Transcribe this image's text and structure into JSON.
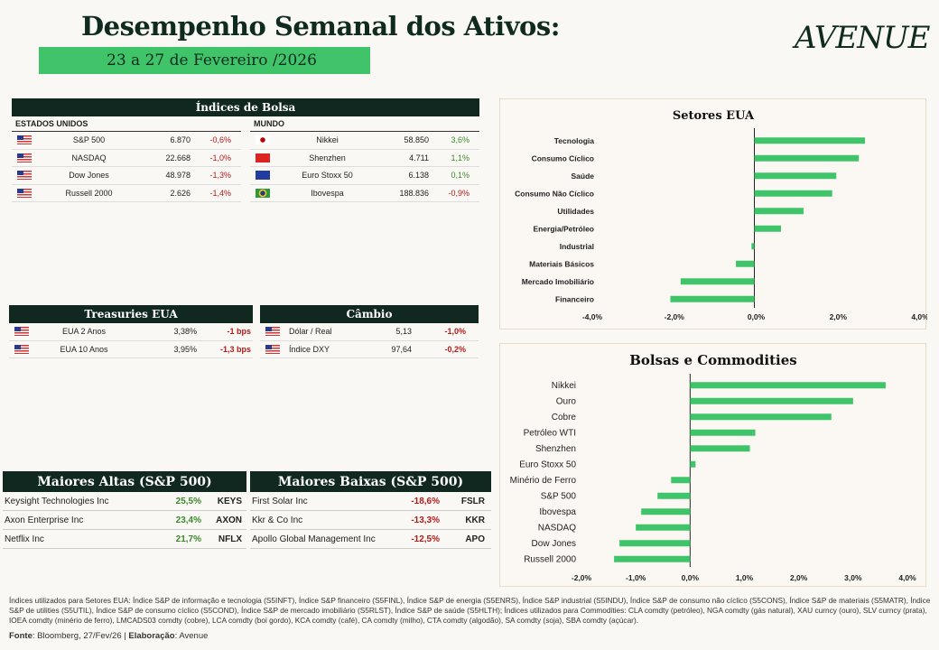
{
  "header": {
    "title": "Desempenho Semanal dos Ativos:",
    "date": "23 a 27 de Fevereiro /2026",
    "logo": "AVENUE"
  },
  "indices": {
    "title": "Índices de Bolsa",
    "us_label": "ESTADOS UNIDOS",
    "world_label": "MUNDO",
    "us": [
      {
        "flag": "us",
        "name": "S&P 500",
        "value": "6.870",
        "change": "-0,6%",
        "dir": "neg"
      },
      {
        "flag": "us",
        "name": "NASDAQ",
        "value": "22.668",
        "change": "-1,0%",
        "dir": "neg"
      },
      {
        "flag": "us",
        "name": "Dow Jones",
        "value": "48.978",
        "change": "-1,3%",
        "dir": "neg"
      },
      {
        "flag": "us",
        "name": "Russell 2000",
        "value": "2.626",
        "change": "-1,4%",
        "dir": "neg"
      }
    ],
    "world": [
      {
        "flag": "jp",
        "name": "Nikkei",
        "value": "58.850",
        "change": "3,6%",
        "dir": "pos"
      },
      {
        "flag": "cn",
        "name": "Shenzhen",
        "value": "4.711",
        "change": "1,1%",
        "dir": "pos"
      },
      {
        "flag": "eu",
        "name": "Euro Stoxx 50",
        "value": "6.138",
        "change": "0,1%",
        "dir": "pos"
      },
      {
        "flag": "br",
        "name": "Ibovespa",
        "value": "188.836",
        "change": "-0,9%",
        "dir": "neg"
      }
    ]
  },
  "treasuries": {
    "title": "Treasuries EUA",
    "rows": [
      {
        "name": "EUA 2 Anos",
        "value": "3,38%",
        "change": "-1 bps"
      },
      {
        "name": "EUA 10 Anos",
        "value": "3,95%",
        "change": "-1,3 bps"
      }
    ]
  },
  "cambio": {
    "title": "Câmbio",
    "rows": [
      {
        "name": "Dólar / Real",
        "value": "5,13",
        "change": "-1,0%"
      },
      {
        "name": "Índice DXY",
        "value": "97,64",
        "change": "-0,2%"
      }
    ]
  },
  "altas": {
    "title": "Maiores Altas (S&P 500)",
    "rows": [
      {
        "name": "Keysight Technologies Inc",
        "change": "25,5%",
        "ticker": "KEYS"
      },
      {
        "name": "Axon Enterprise Inc",
        "change": "23,4%",
        "ticker": "AXON"
      },
      {
        "name": "Netflix Inc",
        "change": "21,7%",
        "ticker": "NFLX"
      }
    ]
  },
  "baixas": {
    "title": "Maiores Baixas (S&P 500)",
    "rows": [
      {
        "name": "First Solar Inc",
        "change": "-18,6%",
        "ticker": "FSLR"
      },
      {
        "name": "Kkr & Co Inc",
        "change": "-13,3%",
        "ticker": "KKR"
      },
      {
        "name": "Apollo Global Management Inc",
        "change": "-12,5%",
        "ticker": "APO"
      }
    ]
  },
  "chart_data": [
    {
      "type": "bar",
      "orientation": "horizontal",
      "title": "Setores EUA",
      "categories": [
        "Tecnologia",
        "Consumo Cíclico",
        "Saúde",
        "Consumo Não Cíclico",
        "Utilidades",
        "Energia/Petróleo",
        "Industrial",
        "Materiais Básicos",
        "Mercado Imobiliário",
        "Financeiro"
      ],
      "values": [
        2.7,
        2.55,
        2.0,
        1.9,
        1.2,
        0.65,
        -0.07,
        -0.45,
        -1.8,
        -2.05
      ],
      "xlim": [
        -4,
        4
      ],
      "ticks": [
        "-4,0%",
        "-2,0%",
        "0,0%",
        "2,0%",
        "4,0%"
      ],
      "color": "#3fc46a"
    },
    {
      "type": "bar",
      "orientation": "horizontal",
      "title": "Bolsas e Commodities",
      "categories": [
        "Nikkei",
        "Ouro",
        "Cobre",
        "Petróleo WTI",
        "Shenzhen",
        "Euro Stoxx 50",
        "Minério de Ferro",
        "S&P 500",
        "Ibovespa",
        "NASDAQ",
        "Dow Jones",
        "Russell 2000"
      ],
      "values": [
        3.6,
        3.0,
        2.6,
        1.2,
        1.1,
        0.1,
        -0.35,
        -0.6,
        -0.9,
        -1.0,
        -1.3,
        -1.4
      ],
      "xlim": [
        -2,
        4
      ],
      "ticks": [
        "-2,0%",
        "-1,0%",
        "0,0%",
        "1,0%",
        "2,0%",
        "3,0%",
        "4,0%"
      ],
      "color": "#3fc46a"
    }
  ],
  "footer": {
    "note": "Índices utilizados para Setores EUA: Índice S&P de informação e tecnologia (S5INFT), Índice S&P financeiro (S5FINL), Índice S&P de energia (S5ENRS), Índice S&P industrial (S5INDU), Índice S&P de consumo não cíclico (S5CONS), Índice S&P de materiais (S5MATR), Índice S&P de utilities (S5UTIL), Índice S&P de consumo cíclico (S5COND), Índice S&P de mercado imobiliário (S5RLST), Índice S&P de saúde (S5HLTH); Índices utilizados para Commodities: CLA comdty (petróleo), NGA comdty (gás natural), XAU curncy (ouro), SLV curncy (prata), IOEA comdty (minério de ferro), LMCADS03 comdty (cobre), LCA comdty (boi gordo), KCA comdty (café), CA comdty (milho), CTA comdty (algodão), SA comdty (soja), SBA comdty (açúcar).",
    "source_label": "Fonte",
    "source": "Bloomberg, 27/Fev/26",
    "elab_label": "Elaboração",
    "elab": "Avenue"
  }
}
